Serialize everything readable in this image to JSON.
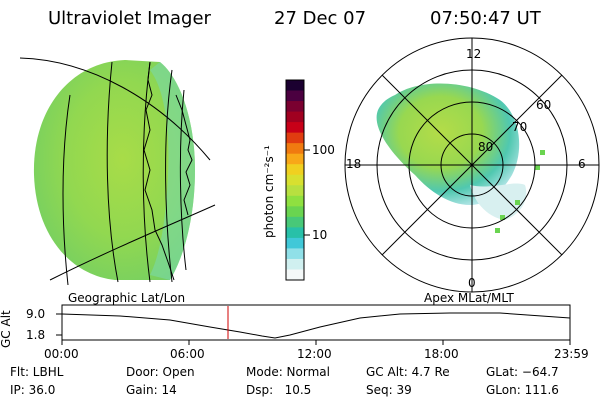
{
  "header": {
    "instrument": "Ultraviolet Imager",
    "date": "27 Dec 07",
    "time": "07:50:47 UT"
  },
  "colorbar": {
    "unit_label": "photon cm⁻²s⁻¹",
    "ticks": [
      "100",
      "10"
    ],
    "colors": [
      "#1b0030",
      "#4b0040",
      "#7a0030",
      "#a00020",
      "#c80018",
      "#e03c10",
      "#f07a10",
      "#f8a818",
      "#f0d020",
      "#d8e030",
      "#b8e040",
      "#8fe040",
      "#6ad450",
      "#48c878",
      "#28c0a8",
      "#40c8d8",
      "#90e0e8",
      "#d0f0f0",
      "#f4f8f8"
    ]
  },
  "geo_panel": {
    "label": "Geographic Lat/Lon"
  },
  "polar_panel": {
    "label": "Apex MLat/MLT",
    "mlt_labels": {
      "top": "12",
      "left": "18",
      "right": "6",
      "bottom": "0"
    },
    "lat_labels": [
      "60",
      "70",
      "80"
    ]
  },
  "altitude_plot": {
    "ylabel": "GC Alt",
    "yticks": [
      "9.0",
      "1.8"
    ],
    "xticks": [
      "00:00",
      "06:00",
      "12:00",
      "18:00",
      "23:59"
    ]
  },
  "status": {
    "flt": "Flt: LBHL",
    "ip": "IP: 36.0",
    "door": "Door: Open",
    "gain": "Gain: 14",
    "mode": "Mode: Normal",
    "dsp": "Dsp:   10.5",
    "gcalt": "GC Alt: 4.7 Re",
    "seq": "Seq: 39",
    "glat": "GLat: −64.7",
    "glon": "GLon: 111.6"
  }
}
